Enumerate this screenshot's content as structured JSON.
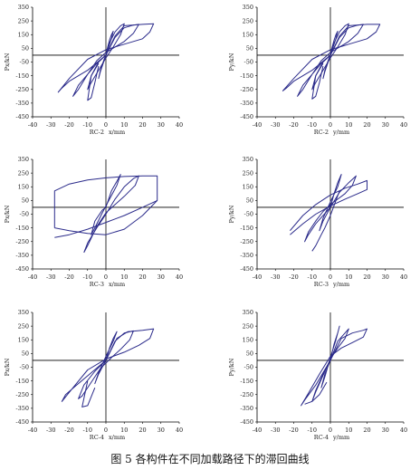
{
  "caption": "图 5  各构件在不同加载路径下的滞回曲线",
  "chart_data": [
    {
      "type": "line",
      "ylabel": "Px/kN",
      "xlabel": "x/mm",
      "specimen": "RC-2",
      "xlim": [
        -40,
        40
      ],
      "ylim": [
        -450,
        350
      ],
      "xticks": [
        -40,
        -30,
        -20,
        -10,
        0,
        10,
        20,
        30,
        40
      ],
      "yticks": [
        350,
        250,
        150,
        50,
        -50,
        -150,
        -250,
        -350,
        -450
      ],
      "ytick_labels": [
        "350",
        "250",
        "150",
        "50",
        "-50",
        "-150",
        "-250",
        "-350",
        "-450"
      ],
      "grid": false,
      "color": "#2a2a8a",
      "series": [
        {
          "x": [
            0,
            1,
            2,
            3,
            4,
            3,
            1,
            -1,
            -3,
            -4,
            -3,
            -1,
            0
          ],
          "y": [
            0,
            60,
            110,
            150,
            175,
            120,
            40,
            -40,
            -120,
            -170,
            -110,
            -30,
            0
          ]
        },
        {
          "x": [
            0,
            2,
            5,
            8,
            10,
            8,
            4,
            0,
            -4,
            -8,
            -10,
            -8,
            -4,
            0
          ],
          "y": [
            0,
            90,
            170,
            215,
            230,
            150,
            60,
            -20,
            -110,
            -200,
            -250,
            -150,
            -50,
            0
          ]
        },
        {
          "x": [
            0,
            5,
            10,
            15,
            18,
            15,
            10,
            5,
            0,
            -5,
            -10,
            -15,
            -18,
            -15,
            -10,
            -5,
            0
          ],
          "y": [
            0,
            130,
            200,
            220,
            225,
            160,
            100,
            60,
            20,
            -40,
            -140,
            -250,
            -300,
            -220,
            -140,
            -60,
            0
          ]
        },
        {
          "x": [
            0,
            5,
            10,
            20,
            26,
            24,
            20,
            10,
            0,
            -10,
            -20,
            -26,
            -24,
            -20,
            -10,
            0
          ],
          "y": [
            0,
            140,
            215,
            225,
            230,
            170,
            120,
            80,
            40,
            -30,
            -170,
            -270,
            -240,
            -190,
            -110,
            0
          ]
        },
        {
          "x": [
            -4,
            -8,
            -10,
            -8,
            -6,
            -4
          ],
          "y": [
            -60,
            -150,
            -330,
            -310,
            -200,
            -80
          ]
        }
      ]
    },
    {
      "type": "line",
      "ylabel": "Py/kN",
      "xlabel": "y/mm",
      "specimen": "RC-2",
      "xlim": [
        -40,
        40
      ],
      "ylim": [
        -450,
        350
      ],
      "xticks": [
        -40,
        -30,
        -20,
        -10,
        0,
        10,
        20,
        30,
        40
      ],
      "yticks": [
        350,
        250,
        150,
        50,
        -50,
        -150,
        -250,
        -350,
        -450
      ],
      "ytick_labels": [
        "350",
        "250",
        "150",
        "50",
        "-50",
        "-150",
        "-250",
        "-350",
        "-450"
      ],
      "grid": false,
      "color": "#2a2a8a",
      "series": [
        {
          "x": [
            0,
            1,
            2,
            3,
            4,
            3,
            1,
            -1,
            -3,
            -4,
            -3,
            -1,
            0
          ],
          "y": [
            0,
            60,
            110,
            150,
            175,
            120,
            40,
            -40,
            -120,
            -170,
            -110,
            -30,
            0
          ]
        },
        {
          "x": [
            0,
            2,
            5,
            8,
            10,
            8,
            4,
            0,
            -4,
            -8,
            -10,
            -8,
            -4,
            0
          ],
          "y": [
            0,
            90,
            170,
            215,
            230,
            150,
            60,
            -20,
            -110,
            -200,
            -250,
            -150,
            -50,
            0
          ]
        },
        {
          "x": [
            0,
            5,
            10,
            15,
            18,
            15,
            10,
            5,
            0,
            -5,
            -10,
            -15,
            -18,
            -15,
            -10,
            -5,
            0
          ],
          "y": [
            0,
            130,
            200,
            220,
            225,
            160,
            100,
            60,
            20,
            -40,
            -140,
            -250,
            -300,
            -220,
            -140,
            -60,
            0
          ]
        },
        {
          "x": [
            0,
            5,
            10,
            20,
            27,
            25,
            20,
            10,
            0,
            -10,
            -20,
            -26,
            -24,
            -20,
            -10,
            0
          ],
          "y": [
            0,
            140,
            215,
            225,
            225,
            170,
            120,
            80,
            40,
            -30,
            -170,
            -260,
            -240,
            -190,
            -110,
            0
          ]
        },
        {
          "x": [
            -4,
            -8,
            -10,
            -8,
            -6,
            -4
          ],
          "y": [
            -60,
            -150,
            -320,
            -300,
            -200,
            -80
          ]
        }
      ]
    },
    {
      "type": "line",
      "ylabel": "Px/kN",
      "xlabel": "x/mm",
      "specimen": "RC-3",
      "xlim": [
        -40,
        40
      ],
      "ylim": [
        -450,
        350
      ],
      "xticks": [
        -40,
        -30,
        -20,
        -10,
        0,
        10,
        20,
        30,
        40
      ],
      "yticks": [
        350,
        250,
        150,
        50,
        -50,
        -150,
        -250,
        -350,
        -450
      ],
      "ytick_labels": [
        "350",
        "250",
        "150",
        "50",
        "-50",
        "-150",
        "-250",
        "-350",
        "-450"
      ],
      "grid": false,
      "color": "#2a2a8a",
      "series": [
        {
          "x": [
            -28,
            -28,
            -20,
            -10,
            0,
            10,
            20,
            28,
            28,
            20,
            10,
            0,
            -10,
            -20,
            -28
          ],
          "y": [
            -150,
            120,
            170,
            200,
            215,
            225,
            230,
            230,
            50,
            0,
            -60,
            -110,
            -160,
            -200,
            -220
          ]
        },
        {
          "x": [
            -12,
            -10,
            -5,
            0,
            5,
            10,
            15,
            18,
            16,
            10,
            5,
            0,
            -5,
            -10,
            -12
          ],
          "y": [
            -330,
            -260,
            -150,
            -50,
            60,
            150,
            210,
            230,
            160,
            80,
            20,
            -40,
            -140,
            -280,
            -330
          ]
        },
        {
          "x": [
            0,
            3,
            6,
            8,
            6,
            2,
            -2,
            -6,
            -8,
            -6,
            -2,
            0
          ],
          "y": [
            0,
            120,
            190,
            240,
            160,
            60,
            -40,
            -150,
            -200,
            -100,
            -20,
            0
          ]
        },
        {
          "x": [
            -28,
            -20,
            -10,
            0,
            10,
            20,
            28
          ],
          "y": [
            -150,
            -170,
            -190,
            -200,
            -160,
            -60,
            50
          ]
        }
      ]
    },
    {
      "type": "line",
      "ylabel": "Py/kN",
      "xlabel": "y/mm",
      "specimen": "RC-3",
      "xlim": [
        -40,
        40
      ],
      "ylim": [
        -450,
        350
      ],
      "xticks": [
        -40,
        -30,
        -20,
        -10,
        0,
        10,
        20,
        30,
        40
      ],
      "yticks": [
        350,
        250,
        150,
        50,
        -50,
        -150,
        -250,
        -350,
        -450
      ],
      "ytick_labels": [
        "350",
        "250",
        "150",
        "50",
        "-50",
        "-150",
        "-250",
        "-350",
        "-450"
      ],
      "grid": false,
      "color": "#2a2a8a",
      "series": [
        {
          "x": [
            0,
            2,
            4,
            6,
            4,
            0,
            -4,
            -6,
            -4,
            0
          ],
          "y": [
            0,
            100,
            180,
            240,
            150,
            40,
            -80,
            -170,
            -100,
            0
          ]
        },
        {
          "x": [
            0,
            5,
            10,
            14,
            12,
            8,
            4,
            0,
            -4,
            -8,
            -12,
            -14,
            -12,
            -8,
            0
          ],
          "y": [
            0,
            110,
            180,
            230,
            160,
            100,
            60,
            20,
            -30,
            -100,
            -180,
            -250,
            -200,
            -120,
            0
          ]
        },
        {
          "x": [
            -22,
            -15,
            -8,
            0,
            8,
            15,
            20,
            20,
            15,
            8,
            0,
            -8,
            -15,
            -22
          ],
          "y": [
            -170,
            -60,
            20,
            90,
            140,
            170,
            195,
            130,
            100,
            60,
            10,
            -50,
            -120,
            -200
          ]
        },
        {
          "x": [
            -10,
            -8,
            -5,
            -3,
            0,
            3,
            5
          ],
          "y": [
            -320,
            -280,
            -200,
            -150,
            -60,
            50,
            120
          ]
        }
      ]
    },
    {
      "type": "line",
      "ylabel": "Px/kN",
      "xlabel": "x/mm",
      "specimen": "RC-4",
      "xlim": [
        -40,
        40
      ],
      "ylim": [
        -450,
        350
      ],
      "xticks": [
        -40,
        -30,
        -20,
        -10,
        0,
        10,
        20,
        30,
        40
      ],
      "yticks": [
        350,
        250,
        150,
        50,
        -50,
        -150,
        -250,
        -350,
        -450
      ],
      "ytick_labels": [
        "350",
        "250",
        "150",
        "50",
        "-50",
        "-150",
        "-250",
        "-350",
        "-450"
      ],
      "grid": false,
      "color": "#2a2a8a",
      "series": [
        {
          "x": [
            0,
            2,
            4,
            6,
            4,
            0,
            -4,
            -6,
            -4,
            0
          ],
          "y": [
            0,
            90,
            160,
            210,
            140,
            30,
            -90,
            -170,
            -100,
            0
          ]
        },
        {
          "x": [
            0,
            5,
            10,
            15,
            13,
            8,
            3,
            -3,
            -8,
            -13,
            -15,
            -12,
            -6,
            0
          ],
          "y": [
            0,
            140,
            200,
            215,
            150,
            80,
            20,
            -60,
            -160,
            -260,
            -280,
            -180,
            -80,
            0
          ]
        },
        {
          "x": [
            0,
            6,
            12,
            20,
            26,
            24,
            18,
            10,
            0,
            -10,
            -18,
            -24,
            -22,
            -16,
            -8,
            0
          ],
          "y": [
            0,
            160,
            210,
            220,
            230,
            160,
            110,
            60,
            10,
            -70,
            -200,
            -300,
            -250,
            -180,
            -90,
            0
          ]
        },
        {
          "x": [
            -10,
            -13,
            -10,
            -6
          ],
          "y": [
            -150,
            -340,
            -330,
            -200
          ]
        }
      ]
    },
    {
      "type": "line",
      "ylabel": "Py/kN",
      "xlabel": "y/mm",
      "specimen": "RC-4",
      "xlim": [
        -40,
        40
      ],
      "ylim": [
        -450,
        350
      ],
      "xticks": [
        -40,
        -30,
        -20,
        -10,
        0,
        10,
        20,
        30,
        40
      ],
      "yticks": [
        350,
        250,
        150,
        50,
        -50,
        -150,
        -250,
        -350,
        -450
      ],
      "ytick_labels": [
        "350",
        "250",
        "150",
        "50",
        "-50",
        "-150",
        "-250",
        "-350",
        "-450"
      ],
      "grid": false,
      "color": "#2a2a8a",
      "series": [
        {
          "x": [
            0,
            2,
            4,
            5,
            3,
            0,
            -3,
            -5,
            -3,
            0
          ],
          "y": [
            0,
            120,
            200,
            250,
            150,
            20,
            -120,
            -200,
            -100,
            0
          ]
        },
        {
          "x": [
            0,
            4,
            8,
            10,
            8,
            4,
            0,
            -4,
            -8,
            -10,
            -8,
            -4,
            0
          ],
          "y": [
            0,
            140,
            200,
            230,
            160,
            90,
            10,
            -110,
            -230,
            -300,
            -220,
            -100,
            0
          ]
        },
        {
          "x": [
            0,
            6,
            12,
            18,
            20,
            18,
            12,
            6,
            0,
            -6,
            -12,
            -16,
            -14,
            -8,
            0
          ],
          "y": [
            0,
            160,
            200,
            220,
            230,
            170,
            130,
            90,
            30,
            -100,
            -240,
            -330,
            -290,
            -180,
            0
          ]
        },
        {
          "x": [
            -14,
            -10,
            -6,
            -2
          ],
          "y": [
            -320,
            -300,
            -250,
            -160
          ]
        }
      ]
    }
  ]
}
